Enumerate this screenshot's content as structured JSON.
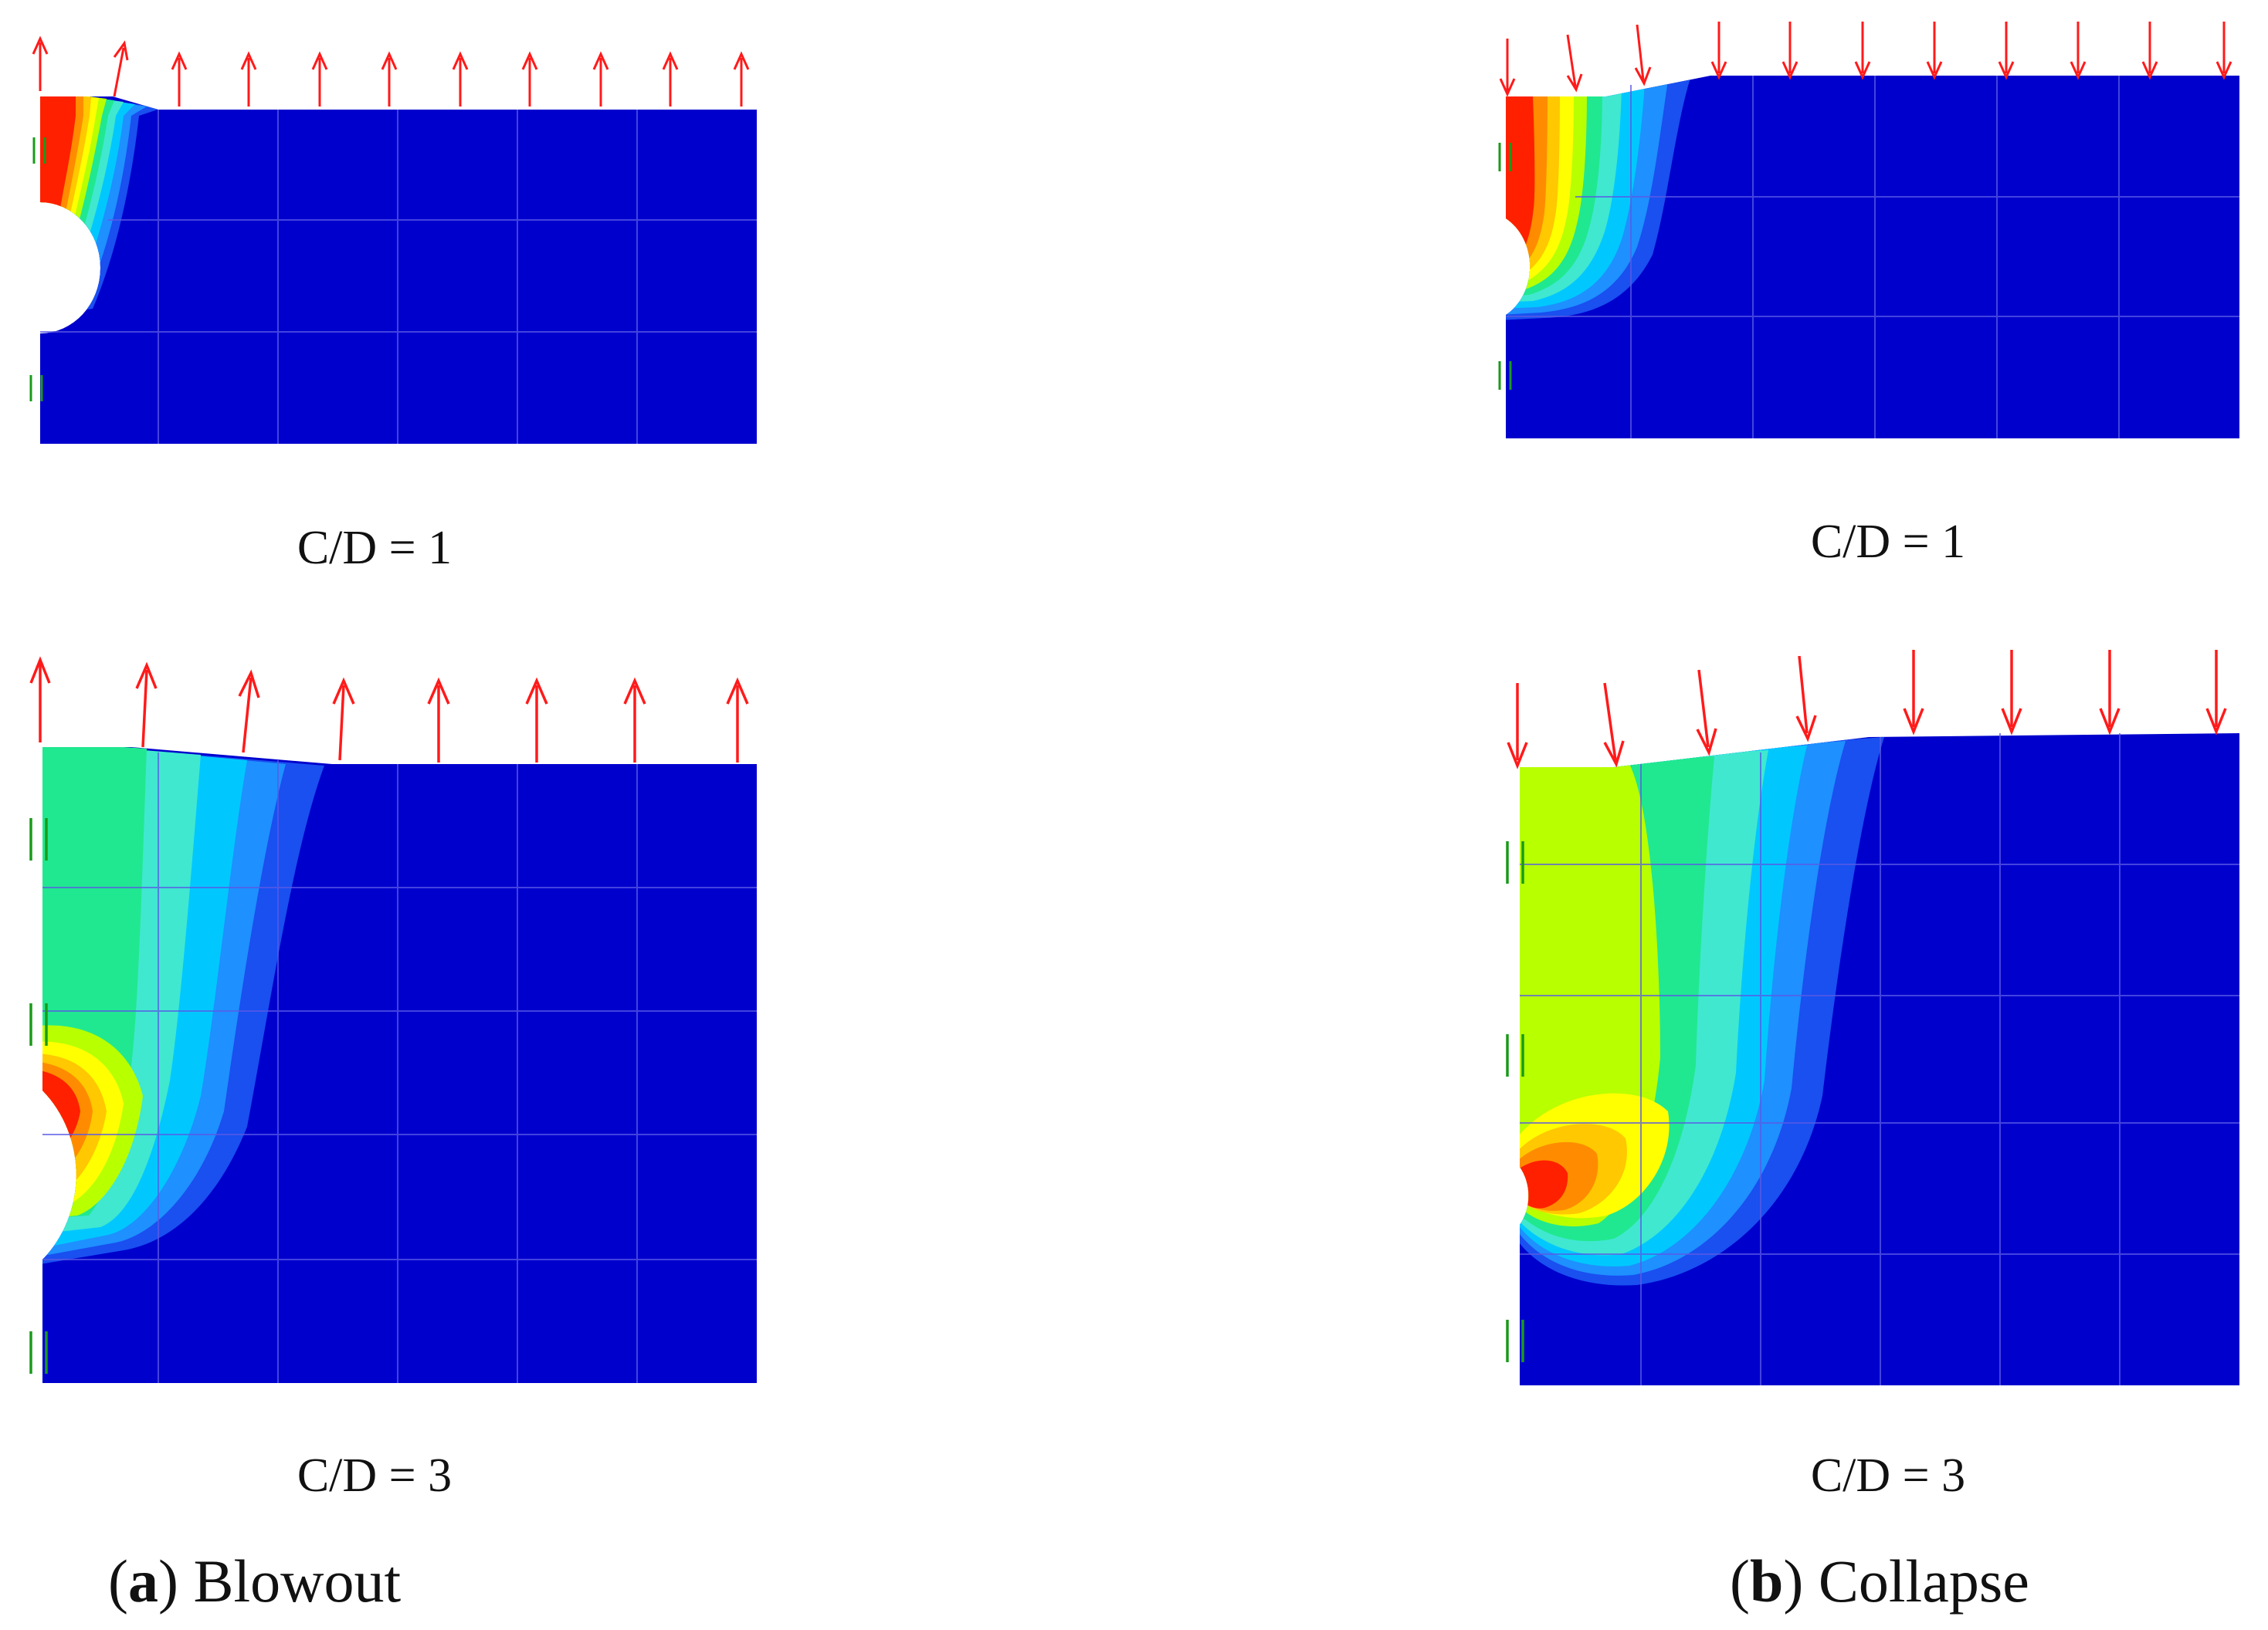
{
  "figure": {
    "panels": [
      {
        "id": "a",
        "caption_letter": "a",
        "caption_text": "Blowout",
        "load_direction": "up",
        "cases": [
          {
            "label": "C/D = 1"
          },
          {
            "label": "C/D = 3"
          }
        ]
      },
      {
        "id": "b",
        "caption_letter": "b",
        "caption_text": "Collapse",
        "load_direction": "down",
        "cases": [
          {
            "label": "C/D = 1"
          },
          {
            "label": "C/D = 3"
          }
        ]
      }
    ],
    "colors": {
      "soil_background": "#0000cd",
      "grid_line": "#5a5ae6",
      "load_arrow": "#ff1a1a",
      "support_mark": "#1a9a1a",
      "contour_scale": [
        "#0000cd",
        "#1a4ff0",
        "#1e90ff",
        "#00c8ff",
        "#40e8d0",
        "#20e890",
        "#b8ff00",
        "#ffff00",
        "#ffc800",
        "#ff8c00",
        "#ff2000"
      ]
    }
  }
}
